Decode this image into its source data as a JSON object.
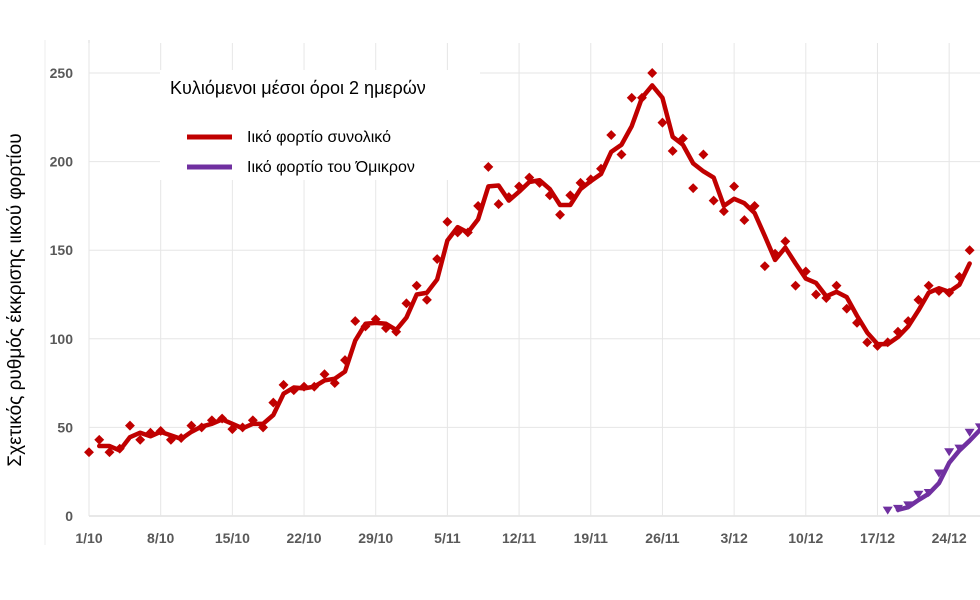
{
  "chart_data": {
    "type": "line",
    "title": "Κυλιόμενοι μέσοι όροι 2 ημερών",
    "xlabel": "",
    "ylabel": "Σχετικός ρυθμός έκκρισης ιικού φορτίου",
    "ylim": [
      0,
      250
    ],
    "yticks": [
      0,
      50,
      100,
      150,
      200,
      250
    ],
    "xticks": [
      "1/10",
      "8/10",
      "15/10",
      "22/10",
      "29/10",
      "5/11",
      "12/11",
      "19/11",
      "26/11",
      "3/12",
      "10/12",
      "17/12",
      "24/12"
    ],
    "x_day_range": [
      0,
      86
    ],
    "legend_position": "top-left",
    "grid": true,
    "series": [
      {
        "name": "Ιικό φορτίο συνολικό",
        "color": "#C00000",
        "start_day": 0,
        "moving_average_window": 2,
        "values": [
          36,
          43,
          36,
          38,
          51,
          43,
          47,
          48,
          43,
          44,
          51,
          50,
          54,
          55,
          49,
          50,
          54,
          50,
          64,
          74,
          71,
          73,
          73,
          80,
          75,
          88,
          110,
          107,
          111,
          106,
          104,
          120,
          130,
          122,
          145,
          166,
          160,
          160,
          175,
          197,
          176,
          180,
          186,
          191,
          188,
          181,
          170,
          181,
          188,
          190,
          196,
          215,
          204,
          236,
          236,
          250,
          222,
          206,
          213,
          185,
          204,
          178,
          172,
          186,
          167,
          175,
          141,
          148,
          155,
          130,
          138,
          125,
          123,
          130,
          117,
          109,
          98,
          96,
          98,
          104,
          110,
          122,
          130,
          127,
          126,
          135,
          150
        ]
      },
      {
        "name": "Ιικό φορτίο του Όμικρον",
        "color": "#7030A0",
        "start_day": 78,
        "moving_average_window": 2,
        "values": [
          3,
          4,
          6,
          12,
          13,
          24,
          36,
          38,
          47,
          50
        ]
      }
    ]
  }
}
